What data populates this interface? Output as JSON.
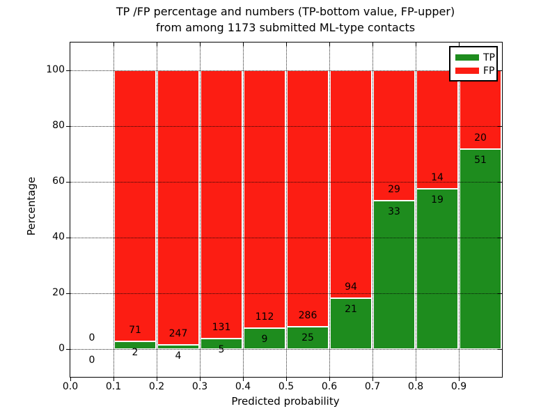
{
  "title": {
    "line1": "TP /FP percentage and numbers (TP-bottom value, FP-upper)",
    "line2": "from among 1173 submitted ML-type contacts"
  },
  "axes": {
    "xlabel": "Predicted probability",
    "ylabel": "Percentage"
  },
  "legend": {
    "position": "upper right",
    "entries": [
      {
        "label": "TP",
        "color": "#1e8c1e"
      },
      {
        "label": "FP",
        "color": "#fc1d13"
      }
    ]
  },
  "chart_data": {
    "type": "bar",
    "stacked": true,
    "normalized": "each bin scaled to 100%",
    "title": "TP /FP percentage and numbers (TP-bottom value, FP-upper) from among 1173 submitted ML-type contacts",
    "xlabel": "Predicted probability",
    "ylabel": "Percentage",
    "xlim": [
      0.0,
      1.0
    ],
    "ylim": [
      -10,
      110
    ],
    "x_ticks": [
      0.0,
      0.1,
      0.2,
      0.3,
      0.4,
      0.5,
      0.6,
      0.7,
      0.8,
      0.9
    ],
    "y_ticks": [
      0,
      20,
      40,
      60,
      80,
      100
    ],
    "grid": "dotted, both axes, drawn over bars",
    "legend_position": "upper right",
    "series": [
      {
        "name": "TP",
        "color": "#1e8c1e"
      },
      {
        "name": "FP",
        "color": "#fc1d13"
      }
    ],
    "total_contacts": 1173,
    "bins": [
      {
        "x0": 0.0,
        "x1": 0.1,
        "tp": 0,
        "fp": 0
      },
      {
        "x0": 0.1,
        "x1": 0.2,
        "tp": 2,
        "fp": 71
      },
      {
        "x0": 0.2,
        "x1": 0.3,
        "tp": 4,
        "fp": 247
      },
      {
        "x0": 0.3,
        "x1": 0.4,
        "tp": 5,
        "fp": 131
      },
      {
        "x0": 0.4,
        "x1": 0.5,
        "tp": 9,
        "fp": 112
      },
      {
        "x0": 0.5,
        "x1": 0.6,
        "tp": 25,
        "fp": 286
      },
      {
        "x0": 0.6,
        "x1": 0.7,
        "tp": 21,
        "fp": 94
      },
      {
        "x0": 0.7,
        "x1": 0.8,
        "tp": 33,
        "fp": 29
      },
      {
        "x0": 0.8,
        "x1": 0.9,
        "tp": 19,
        "fp": 14
      },
      {
        "x0": 0.9,
        "x1": 1.0,
        "tp": 51,
        "fp": 20
      }
    ]
  }
}
